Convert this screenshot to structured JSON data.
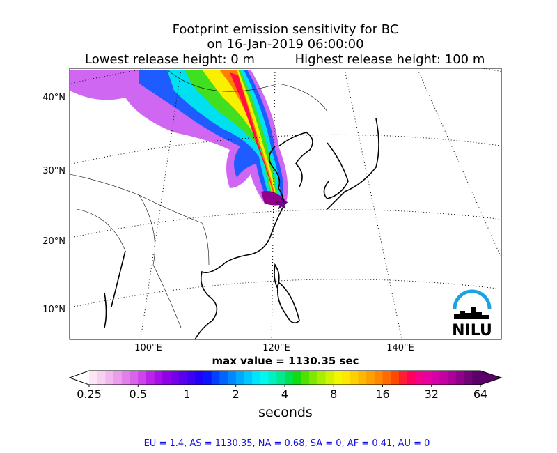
{
  "title_lines": [
    "Footprint emission sensitivity for BC",
    "on 16-Jan-2019 06:00:00"
  ],
  "release": {
    "lowest": "Lowest release height: 0 m",
    "highest": "Highest release height: 100 m"
  },
  "map": {
    "lat_labels": [
      "40°N",
      "30°N",
      "20°N",
      "10°N"
    ],
    "lon_labels": [
      "100°E",
      "120°E",
      "140°E"
    ]
  },
  "max_value": "max value = 1130.35 sec",
  "colorbar": {
    "ticks": [
      0.25,
      0.5,
      1,
      2,
      4,
      8,
      16,
      32,
      64
    ],
    "range": [
      0.25,
      64
    ],
    "scale": "log",
    "label": "seconds",
    "colors": [
      "#fde6f8",
      "#f8d0f2",
      "#f2b8ee",
      "#eb9cec",
      "#e280ea",
      "#d864ea",
      "#cc44ea",
      "#bb22ea",
      "#a80ee8",
      "#9000e8",
      "#7600ea",
      "#5a00ee",
      "#3c00f4",
      "#2000fa",
      "#0a14ff",
      "#0040ff",
      "#0064ff",
      "#0088ff",
      "#00a8ff",
      "#00c8ff",
      "#00e4ff",
      "#00f8f0",
      "#00f0c0",
      "#00e890",
      "#00e050",
      "#10dc10",
      "#50e000",
      "#80e800",
      "#a8ee00",
      "#d0f400",
      "#f0f800",
      "#ffe800",
      "#ffd000",
      "#ffb800",
      "#ffa000",
      "#ff8800",
      "#ff6a00",
      "#ff4800",
      "#ff1e30",
      "#ff0060",
      "#f4008a",
      "#e800a0",
      "#d800a8",
      "#c400a4",
      "#ac0098",
      "#90008a",
      "#74007a",
      "#5a0068"
    ]
  },
  "logo": "NILU",
  "footer": "EU = 1.4,  AS = 1130.35,  NA = 0.68,  SA = 0,  AF = 0.41,  AU = 0"
}
